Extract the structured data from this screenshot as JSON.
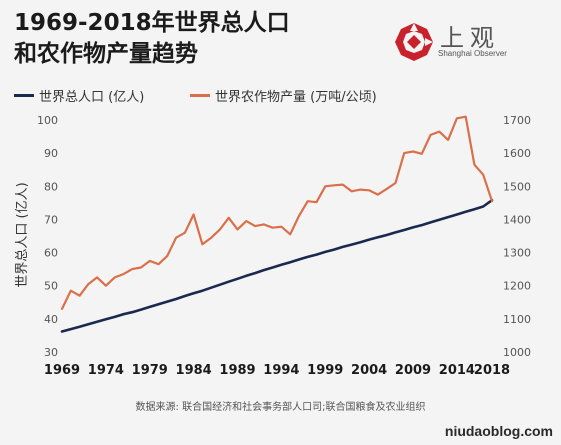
{
  "title": {
    "line1": "1969-2018年世界总人口",
    "line2": "和农作物产量趋势"
  },
  "logo": {
    "icon": "shanghai-observer-logo-icon",
    "text_cn": "上观",
    "text_en": "Shanghai Observer"
  },
  "source": "数据来源: 联合国经济和社会事务部人口司;联合国粮食及农业组织",
  "watermark": "niudaoblog.com",
  "colors": {
    "population": "#1a2a4f",
    "crop": "#d9704a",
    "axis_text": "#555555",
    "background": "#f4f4f4"
  },
  "chart_data": {
    "type": "line",
    "x": [
      1969,
      1970,
      1971,
      1972,
      1973,
      1974,
      1975,
      1976,
      1977,
      1978,
      1979,
      1980,
      1981,
      1982,
      1983,
      1984,
      1985,
      1986,
      1987,
      1988,
      1989,
      1990,
      1991,
      1992,
      1993,
      1994,
      1995,
      1996,
      1997,
      1998,
      1999,
      2000,
      2001,
      2002,
      2003,
      2004,
      2005,
      2006,
      2007,
      2008,
      2009,
      2010,
      2011,
      2012,
      2013,
      2014,
      2015,
      2016,
      2017,
      2018
    ],
    "xticks": [
      "1969",
      "1974",
      "1979",
      "1984",
      "1989",
      "1994",
      "1999",
      "2004",
      "2009",
      "2014",
      "2018"
    ],
    "xlim": [
      1969,
      2018
    ],
    "left_axis": {
      "label": "世界总人口 (亿人)",
      "ylim": [
        30,
        100
      ],
      "ticks": [
        "30",
        "40",
        "50",
        "60",
        "70",
        "80",
        "90",
        "100"
      ]
    },
    "right_axis": {
      "label": "",
      "ylim": [
        1000,
        1700
      ],
      "ticks": [
        "1000",
        "1100",
        "1200",
        "1300",
        "1400",
        "1500",
        "1600",
        "1700"
      ]
    },
    "series": [
      {
        "name": "世界总人口 (亿人)",
        "axis": "left",
        "values": [
          36.2,
          36.9,
          37.6,
          38.4,
          39.1,
          39.9,
          40.6,
          41.4,
          42.0,
          42.8,
          43.6,
          44.4,
          45.2,
          46.0,
          46.9,
          47.7,
          48.5,
          49.4,
          50.3,
          51.2,
          52.1,
          53.0,
          53.8,
          54.7,
          55.5,
          56.3,
          57.1,
          57.9,
          58.7,
          59.4,
          60.2,
          60.9,
          61.7,
          62.4,
          63.1,
          63.9,
          64.6,
          65.3,
          66.1,
          66.8,
          67.6,
          68.3,
          69.1,
          69.9,
          70.7,
          71.5,
          72.3,
          73.1,
          73.9,
          75.8
        ]
      },
      {
        "name": "世界农作物产量 (万吨/公顷)",
        "axis": "right",
        "values": [
          1130,
          1185,
          1170,
          1205,
          1225,
          1200,
          1225,
          1235,
          1250,
          1255,
          1275,
          1265,
          1290,
          1345,
          1360,
          1415,
          1325,
          1345,
          1370,
          1405,
          1370,
          1395,
          1380,
          1385,
          1375,
          1378,
          1355,
          1410,
          1455,
          1452,
          1500,
          1503,
          1505,
          1485,
          1490,
          1488,
          1475,
          1492,
          1510,
          1600,
          1605,
          1598,
          1655,
          1665,
          1640,
          1705,
          1710,
          1565,
          1535,
          1455
        ]
      }
    ],
    "legend_position": "top-left",
    "grid": false
  }
}
